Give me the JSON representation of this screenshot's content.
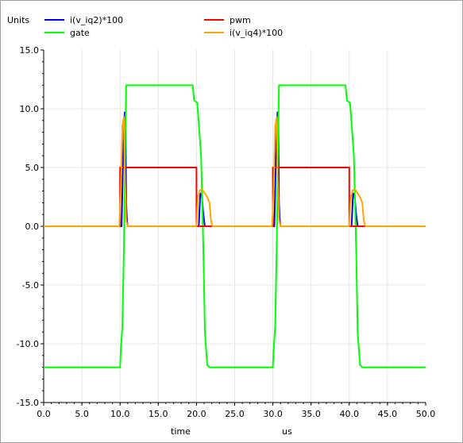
{
  "chart_data": {
    "type": "line",
    "ylabel": "Units",
    "xlabel": "time",
    "xunit": "us",
    "xlim": [
      0,
      50
    ],
    "ylim": [
      -15,
      15
    ],
    "xticks": [
      "0.0",
      "5.0",
      "10.0",
      "15.0",
      "20.0",
      "25.0",
      "30.0",
      "35.0",
      "40.0",
      "45.0",
      "50.0"
    ],
    "yticks": [
      "15.0",
      "10.0",
      "5.0",
      "0.0",
      "-5.0",
      "-10.0",
      "-15.0"
    ],
    "grid": true,
    "legend_placement": "top",
    "series": [
      {
        "name": "i(v_iq2)*100",
        "color": "#0000ff",
        "x": [
          0,
          10.0,
          10.2,
          10.3,
          10.4,
          10.5,
          10.6,
          10.7,
          10.8,
          10.9,
          11.0,
          20.0,
          20.3,
          20.5,
          20.7,
          20.9,
          21.1,
          30.0,
          30.2,
          30.3,
          30.4,
          30.5,
          30.6,
          30.7,
          30.8,
          30.9,
          31.0,
          40.0,
          40.3,
          40.5,
          40.7,
          40.9,
          41.1,
          50.0
        ],
        "y": [
          0,
          0,
          0,
          3.0,
          6.0,
          8.0,
          9.7,
          9.7,
          2.0,
          0.5,
          0,
          0,
          0,
          2.8,
          2.6,
          1.0,
          0,
          0,
          0,
          3.0,
          6.0,
          8.0,
          9.7,
          9.7,
          2.0,
          0.5,
          0,
          0,
          0,
          2.8,
          2.6,
          1.0,
          0,
          0
        ]
      },
      {
        "name": "gate",
        "color": "#00ff00",
        "x": [
          0,
          10.0,
          10.1,
          10.3,
          10.5,
          10.7,
          10.8,
          11.0,
          19.5,
          19.7,
          20.1,
          20.6,
          20.9,
          21.1,
          21.4,
          21.7,
          22.0,
          23.0,
          30.0,
          30.1,
          30.3,
          30.5,
          30.7,
          30.8,
          31.0,
          39.5,
          39.7,
          40.1,
          40.6,
          40.9,
          41.1,
          41.4,
          41.7,
          42.0,
          43.0,
          50.0
        ],
        "y": [
          -12,
          -12,
          -10.5,
          -8.5,
          -2.0,
          8.0,
          12.0,
          12.0,
          12.0,
          10.7,
          10.5,
          6.0,
          -2.0,
          -9.0,
          -11.8,
          -12,
          -12,
          -12,
          -12,
          -10.5,
          -8.5,
          -2.0,
          8.0,
          12.0,
          12.0,
          12.0,
          10.7,
          10.5,
          6.0,
          -2.0,
          -9.0,
          -11.8,
          -12,
          -12,
          -12,
          -12
        ]
      },
      {
        "name": "pwm",
        "color": "#ff0000",
        "x": [
          0,
          10.0,
          10.0,
          20.0,
          20.0,
          30.0,
          30.0,
          40.0,
          40.0,
          50.0
        ],
        "y": [
          0,
          0,
          5,
          5,
          0,
          0,
          5,
          5,
          0,
          0
        ]
      },
      {
        "name": "i(v_iq4)*100",
        "color": "#ffa500",
        "x": [
          0,
          9.9,
          10.1,
          10.3,
          10.5,
          10.6,
          10.8,
          11.0,
          20.0,
          20.2,
          20.5,
          20.8,
          21.1,
          21.4,
          21.7,
          21.9,
          22.1,
          29.9,
          30.1,
          30.3,
          30.5,
          30.6,
          30.8,
          31.0,
          40.0,
          40.2,
          40.5,
          40.8,
          41.1,
          41.4,
          41.7,
          41.9,
          42.1,
          50.0
        ],
        "y": [
          0,
          0,
          3.0,
          8.5,
          9.3,
          5.0,
          0.5,
          0,
          0,
          2.5,
          3.1,
          3.1,
          2.8,
          2.5,
          2.0,
          0.5,
          0,
          0,
          3.0,
          8.5,
          9.3,
          5.0,
          0.5,
          0,
          0,
          2.5,
          3.1,
          3.1,
          2.8,
          2.5,
          2.0,
          0.5,
          0,
          0
        ]
      }
    ]
  }
}
